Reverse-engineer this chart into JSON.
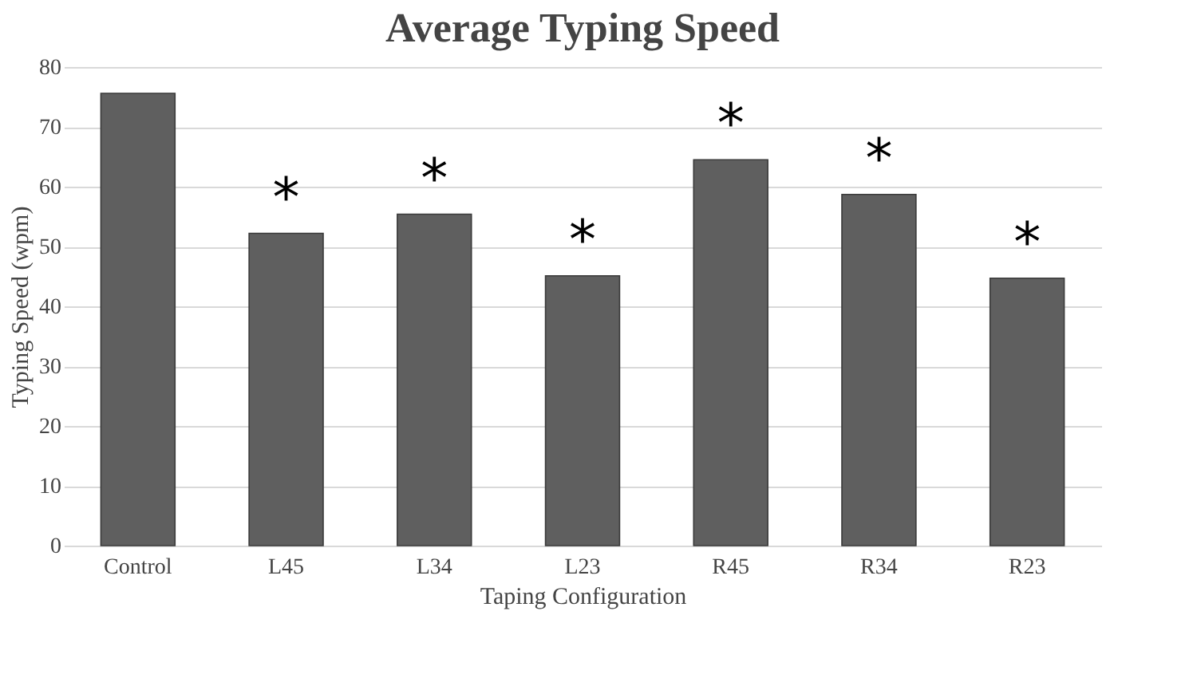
{
  "chart_data": {
    "type": "bar",
    "title": "Average Typing Speed",
    "xlabel": "Taping Configuration",
    "ylabel": "Typing Speed (wpm)",
    "categories": [
      "Control",
      "L45",
      "L34",
      "L23",
      "R45",
      "R34",
      "R23"
    ],
    "values": [
      75.6,
      52.2,
      55.4,
      45.1,
      64.5,
      58.7,
      44.7
    ],
    "color": "#5f5f5f",
    "ylim": [
      0,
      80
    ],
    "yticks": [
      0,
      10,
      20,
      30,
      40,
      50,
      60,
      70,
      80
    ],
    "grid": "y",
    "annotations": [
      {
        "text": "*",
        "x": "L45",
        "y": 52.2
      },
      {
        "text": "*",
        "x": "L34",
        "y": 55.4
      },
      {
        "text": "*",
        "x": "L23",
        "y": 45.1
      },
      {
        "text": "*",
        "x": "R45",
        "y": 64.5
      },
      {
        "text": "*",
        "x": "R34",
        "y": 58.7
      },
      {
        "text": "*",
        "x": "R23",
        "y": 44.7
      }
    ]
  }
}
